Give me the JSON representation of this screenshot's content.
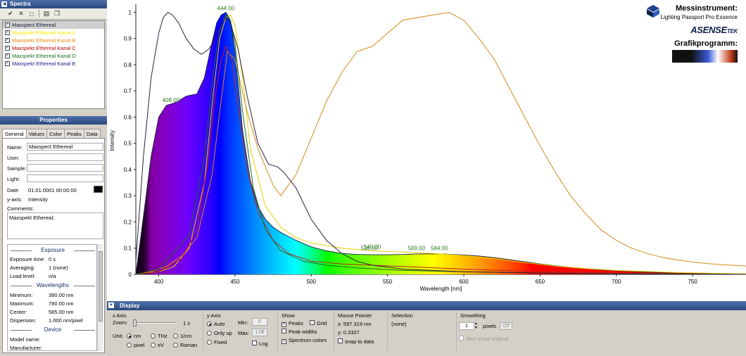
{
  "spectra_panel": {
    "title": "Spectra",
    "items": [
      {
        "label": "Maxspect Ethereal",
        "color": "#1b1b3a",
        "checked": true,
        "selected": true
      },
      {
        "label": "Maxspekt Ethereal Kanal A",
        "color": "#ffe800",
        "checked": true
      },
      {
        "label": "Maxspekt Ethereal Kanal B",
        "color": "#f28a0a",
        "checked": true
      },
      {
        "label": "Maxspekt Ethereal Kanal C",
        "color": "#c00000",
        "checked": true
      },
      {
        "label": "Maxspekt Ethereal Kanal D",
        "color": "#1e6b1e",
        "checked": true
      },
      {
        "label": "Maxspekt Ethereal Kanal E",
        "color": "#1a1a8a",
        "checked": true
      }
    ]
  },
  "properties_panel": {
    "title": "Properties",
    "tabs": [
      "General",
      "Values",
      "Color",
      "Peaks",
      "Data"
    ],
    "active_tab": "General",
    "name_label": "Name:",
    "name_value": "Maxspect Ethereal",
    "user_label": "User:",
    "sample_label": "Sample:",
    "light_label": "Light:",
    "date_label": "Date:",
    "date_value": "01.01.0001 00:00:00",
    "yaxis_label": "y-axis:",
    "yaxis_value": "Intensity",
    "comments_label": "Comments:",
    "comments_value": "Maxspekt Ethereal;",
    "exposure_title": "Exposure",
    "exposure_time_label": "Exposure time:",
    "exposure_time_value": "0 s",
    "averaging_label": "Averaging:",
    "averaging_value": "1 (none)",
    "load_level_label": "Load level:",
    "load_level_value": "n/a",
    "wavelengths_title": "Wavelengths",
    "minimum_label": "Minimum:",
    "minimum_value": "390.00 nm",
    "maximum_label": "Maximum:",
    "maximum_value": "780.00 nm",
    "center_label": "Center:",
    "center_value": "585.00 nm",
    "dispersion_label": "Dispersion:",
    "dispersion_value": "1.000 nm/pixel",
    "device_title": "Device",
    "model_label": "Model name:",
    "manufacturer_label": "Manufacturer:"
  },
  "branding": {
    "messinstrument": "Messinstrument:",
    "device_name": "Lighting Passport Pro Essence",
    "logo_text": "ASENSE",
    "logo_suffix": "TEK",
    "grafik": "Grafikprogramm:"
  },
  "chart_data": {
    "type": "line",
    "ylabel": "Intensity",
    "xlabel": "Wavelength [nm]",
    "xlim": [
      385,
      785
    ],
    "ylim": [
      0,
      1.02
    ],
    "x_ticks": [
      400,
      450,
      500,
      550,
      600,
      650,
      700,
      750
    ],
    "y_ticks": [
      0,
      0.1,
      0.2,
      0.3,
      0.4,
      0.5,
      0.6,
      0.7,
      0.8,
      0.9,
      1
    ],
    "peak_labels": [
      {
        "x": 408,
        "y": 0.65,
        "label": "408.00"
      },
      {
        "x": 444,
        "y": 1.0,
        "label": "444.00"
      },
      {
        "x": 540,
        "y": 0.09,
        "label": "540.00"
      },
      {
        "x": 538,
        "y": 0.085,
        "label": "538.00"
      },
      {
        "x": 569,
        "y": 0.085,
        "label": "569.00"
      },
      {
        "x": 584,
        "y": 0.084,
        "label": "584.00"
      }
    ],
    "series": [
      {
        "name": "Maxspect Ethereal",
        "color": "#1b1b3a",
        "filled_spectrum": true,
        "x": [
          385,
          390,
          395,
          400,
          405,
          408,
          412,
          418,
          422,
          425,
          430,
          434,
          438,
          441,
          444,
          447,
          450,
          455,
          460,
          465,
          470,
          475,
          480,
          490,
          500,
          510,
          520,
          530,
          540,
          550,
          560,
          569,
          575,
          584,
          590,
          600,
          610,
          620,
          630,
          640,
          650,
          660,
          670,
          680,
          690,
          700,
          720,
          740,
          760,
          785
        ],
        "y": [
          0.0,
          0.22,
          0.45,
          0.6,
          0.645,
          0.65,
          0.658,
          0.68,
          0.685,
          0.688,
          0.75,
          0.86,
          0.96,
          0.99,
          1.0,
          0.97,
          0.85,
          0.55,
          0.36,
          0.26,
          0.21,
          0.18,
          0.16,
          0.13,
          0.105,
          0.09,
          0.08,
          0.076,
          0.075,
          0.075,
          0.076,
          0.078,
          0.078,
          0.078,
          0.077,
          0.074,
          0.07,
          0.064,
          0.056,
          0.048,
          0.04,
          0.033,
          0.027,
          0.022,
          0.017,
          0.014,
          0.009,
          0.006,
          0.004,
          0.002
        ]
      },
      {
        "name": "Maxspekt Ethereal Kanal A",
        "color": "#e6d200",
        "x": [
          385,
          400,
          410,
          420,
          430,
          436,
          440,
          444,
          447,
          450,
          455,
          460,
          470,
          480,
          490,
          500,
          520,
          540,
          560,
          580,
          600,
          620,
          640,
          660,
          680,
          700,
          740,
          785
        ],
        "y": [
          0.0,
          0.01,
          0.03,
          0.1,
          0.35,
          0.7,
          0.9,
          0.98,
          0.99,
          0.95,
          0.75,
          0.48,
          0.26,
          0.18,
          0.14,
          0.12,
          0.1,
          0.09,
          0.085,
          0.08,
          0.072,
          0.06,
          0.045,
          0.032,
          0.022,
          0.015,
          0.007,
          0.002
        ]
      },
      {
        "name": "Maxspekt Ethereal Kanal B",
        "color": "#d8891a",
        "x": [
          385,
          395,
          405,
          415,
          425,
          435,
          440,
          445,
          450,
          458,
          465,
          475,
          480,
          490,
          500,
          510,
          520,
          530,
          540,
          550,
          560,
          570,
          580,
          590,
          600,
          610,
          620,
          630,
          640,
          650,
          660,
          670,
          680,
          690,
          700,
          710,
          720,
          730,
          740,
          750,
          760,
          770,
          785
        ],
        "y": [
          0.0,
          0.01,
          0.03,
          0.07,
          0.14,
          0.38,
          0.62,
          0.85,
          0.82,
          0.62,
          0.48,
          0.34,
          0.3,
          0.38,
          0.52,
          0.66,
          0.77,
          0.85,
          0.87,
          0.92,
          0.97,
          0.98,
          0.99,
          1.0,
          0.97,
          0.9,
          0.82,
          0.71,
          0.6,
          0.49,
          0.39,
          0.3,
          0.23,
          0.17,
          0.13,
          0.1,
          0.08,
          0.065,
          0.055,
          0.047,
          0.041,
          0.037,
          0.032
        ]
      },
      {
        "name": "Maxspekt Ethereal Kanal C",
        "color": "#c22020",
        "x": [
          385,
          400,
          415,
          425,
          432,
          437,
          441,
          444,
          448,
          452,
          458,
          465,
          475,
          485,
          500,
          520,
          540,
          560,
          600,
          650,
          700,
          785
        ],
        "y": [
          0.0,
          0.01,
          0.06,
          0.17,
          0.42,
          0.68,
          0.82,
          0.87,
          0.82,
          0.64,
          0.4,
          0.24,
          0.13,
          0.08,
          0.05,
          0.04,
          0.035,
          0.03,
          0.02,
          0.01,
          0.005,
          0.0
        ]
      },
      {
        "name": "Maxspekt Ethereal Kanal D",
        "color": "#1e6b1e",
        "x": [
          385,
          400,
          420,
          430,
          436,
          440,
          444,
          447,
          450,
          455,
          462,
          470,
          480,
          495,
          510,
          530,
          560,
          600,
          650,
          700,
          785
        ],
        "y": [
          0.0,
          0.02,
          0.15,
          0.45,
          0.78,
          0.93,
          0.99,
          0.97,
          0.88,
          0.62,
          0.33,
          0.17,
          0.09,
          0.05,
          0.035,
          0.025,
          0.015,
          0.01,
          0.005,
          0.003,
          0.0
        ]
      },
      {
        "name": "Maxspekt Ethereal Kanal E",
        "color": "#2b1f3f",
        "x": [
          385,
          390,
          395,
          400,
          403,
          406,
          409,
          413,
          418,
          423,
          428,
          433,
          437,
          441,
          444,
          447,
          452,
          458,
          465,
          472,
          478,
          482,
          486,
          490,
          495,
          500,
          510,
          520,
          530,
          540,
          560,
          600,
          650,
          700,
          785
        ],
        "y": [
          0.05,
          0.45,
          0.75,
          0.92,
          0.98,
          1.0,
          0.99,
          0.96,
          0.9,
          0.86,
          0.84,
          0.86,
          0.9,
          0.95,
          0.98,
          0.96,
          0.86,
          0.68,
          0.5,
          0.42,
          0.41,
          0.39,
          0.36,
          0.33,
          0.27,
          0.21,
          0.13,
          0.08,
          0.05,
          0.035,
          0.02,
          0.01,
          0.005,
          0.002,
          0.0
        ]
      }
    ]
  },
  "display_panel": {
    "title": "Display",
    "xaxis": {
      "title": "x Axis",
      "zoom_label": "Zoom:",
      "zoom_value": "1 x",
      "unit_label": "Unit:",
      "units": [
        {
          "label": "nm",
          "on": true
        },
        {
          "label": "THz",
          "on": false
        },
        {
          "label": "1/cm",
          "on": false
        },
        {
          "label": "pixel",
          "on": false
        },
        {
          "label": "eV",
          "on": false
        },
        {
          "label": "Raman",
          "on": false
        }
      ]
    },
    "yaxis": {
      "title": "y Axis",
      "modes": [
        {
          "label": "Auto",
          "on": true
        },
        {
          "label": "Only up",
          "on": false
        },
        {
          "label": "Fixed",
          "on": false
        }
      ],
      "min_label": "Min:",
      "min_value": "0",
      "max_label": "Max:",
      "max_value": "1.06",
      "log_label": "Log"
    },
    "show": {
      "title": "Show",
      "peaks": "Peaks",
      "grid": "Grid",
      "peak_widths": "Peak widths",
      "spectrum_colors": "Spectrum colors"
    },
    "pointer": {
      "title": "Mouse Pointer",
      "x": "x: 597.319 nm",
      "y": "y: 0.3327",
      "snap": "snap to data"
    },
    "selection": {
      "title": "Selection",
      "value": "(none)"
    },
    "smoothing": {
      "title": "Smoothing",
      "value": "1",
      "unit": "pixels",
      "off": "Off",
      "also_show": "Also show original"
    }
  }
}
